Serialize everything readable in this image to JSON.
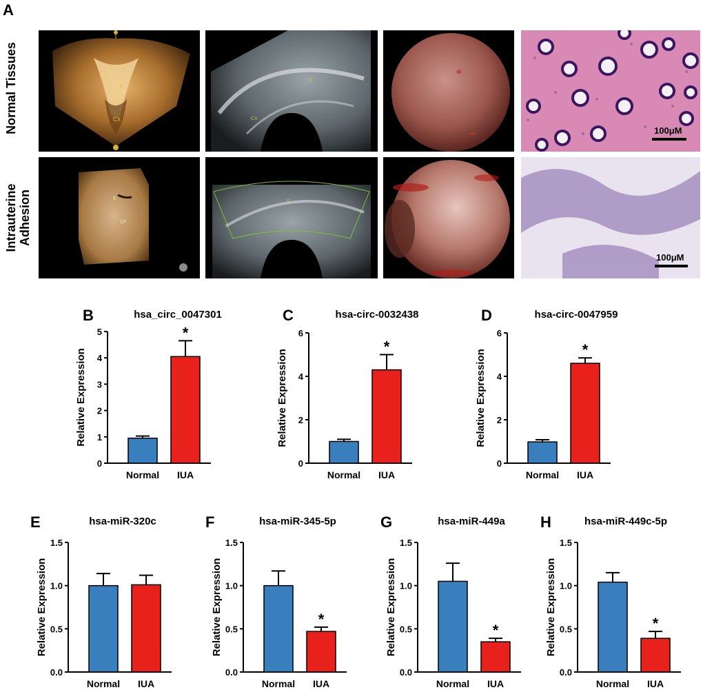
{
  "panel_a": {
    "letter": "A",
    "row_labels": [
      "Normal Tissues",
      "Intrauterine Adhesion"
    ],
    "row_label_lines": [
      [
        "Normal Tissues"
      ],
      [
        "Intrauterine",
        "Adhesion"
      ]
    ],
    "scale_bar_labels": [
      "100μM",
      "100μM"
    ],
    "image_descriptions": []
  },
  "colors": {
    "normal": "#3a7fbd",
    "iua": "#e8211d",
    "axis": "#000000"
  },
  "chart_data": [
    {
      "letter": "B",
      "type": "bar",
      "title": "hsa_circ_0047301",
      "categories": [
        "Normal",
        "IUA"
      ],
      "values": [
        0.95,
        4.05
      ],
      "errors": [
        0.08,
        0.6
      ],
      "significance": [
        false,
        true
      ],
      "ylabel": "Relative Expression",
      "ylim": [
        0,
        5
      ],
      "yticks": [
        0,
        1,
        2,
        3,
        4,
        5
      ],
      "tick_labels": [
        "0",
        "1",
        "2",
        "3",
        "4",
        "5"
      ],
      "sig_label": "*"
    },
    {
      "letter": "C",
      "type": "bar",
      "title": "hsa-circ-0032438",
      "categories": [
        "Normal",
        "IUA"
      ],
      "values": [
        1.0,
        4.3
      ],
      "errors": [
        0.1,
        0.7
      ],
      "significance": [
        false,
        true
      ],
      "ylabel": "Relative Expression",
      "ylim": [
        0,
        6
      ],
      "yticks": [
        0,
        2,
        4,
        6
      ],
      "tick_labels": [
        "0",
        "2",
        "4",
        "6"
      ],
      "sig_label": "*"
    },
    {
      "letter": "D",
      "type": "bar",
      "title": "hsa-circ-0047959",
      "categories": [
        "Normal",
        "IUA"
      ],
      "values": [
        0.98,
        4.6
      ],
      "errors": [
        0.1,
        0.25
      ],
      "significance": [
        false,
        true
      ],
      "ylabel": "Relative Expression",
      "ylim": [
        0,
        6
      ],
      "yticks": [
        0,
        2,
        4,
        6
      ],
      "tick_labels": [
        "0",
        "2",
        "4",
        "6"
      ],
      "sig_label": "*"
    },
    {
      "letter": "E",
      "type": "bar",
      "title": "hsa-miR-320c",
      "categories": [
        "Normal",
        "IUA"
      ],
      "values": [
        1.0,
        1.01
      ],
      "errors": [
        0.14,
        0.11
      ],
      "significance": [
        false,
        false
      ],
      "ylabel": "Relative Expression",
      "ylim": [
        0,
        1.5
      ],
      "yticks": [
        0,
        0.5,
        1.0,
        1.5
      ],
      "tick_labels": [
        "0.0",
        "0.5",
        "1.0",
        "1.5"
      ],
      "sig_label": "*"
    },
    {
      "letter": "F",
      "type": "bar",
      "title": "hsa-miR-345-5p",
      "categories": [
        "Normal",
        "IUA"
      ],
      "values": [
        1.0,
        0.47
      ],
      "errors": [
        0.17,
        0.05
      ],
      "significance": [
        false,
        true
      ],
      "ylabel": "Relative Expression",
      "ylim": [
        0,
        1.5
      ],
      "yticks": [
        0,
        0.5,
        1.0,
        1.5
      ],
      "tick_labels": [
        "0.0",
        "0.5",
        "1.0",
        "1.5"
      ],
      "sig_label": "*"
    },
    {
      "letter": "G",
      "type": "bar",
      "title": "hsa-miR-449a",
      "categories": [
        "Normal",
        "IUA"
      ],
      "values": [
        1.05,
        0.35
      ],
      "errors": [
        0.21,
        0.04
      ],
      "significance": [
        false,
        true
      ],
      "ylabel": "Relative Expression",
      "ylim": [
        0,
        1.5
      ],
      "yticks": [
        0,
        0.5,
        1.0,
        1.5
      ],
      "tick_labels": [
        "0.0",
        "0.5",
        "1.0",
        "1.5"
      ],
      "sig_label": "*"
    },
    {
      "letter": "H",
      "type": "bar",
      "title": "hsa-miR-449c-5p",
      "categories": [
        "Normal",
        "IUA"
      ],
      "values": [
        1.04,
        0.39
      ],
      "errors": [
        0.11,
        0.08
      ],
      "significance": [
        false,
        true
      ],
      "ylabel": "Relative Expression",
      "ylim": [
        0,
        1.5
      ],
      "yticks": [
        0,
        0.5,
        1.0,
        1.5
      ],
      "tick_labels": [
        "0.0",
        "0.5",
        "1.0",
        "1.5"
      ],
      "sig_label": "*"
    }
  ]
}
